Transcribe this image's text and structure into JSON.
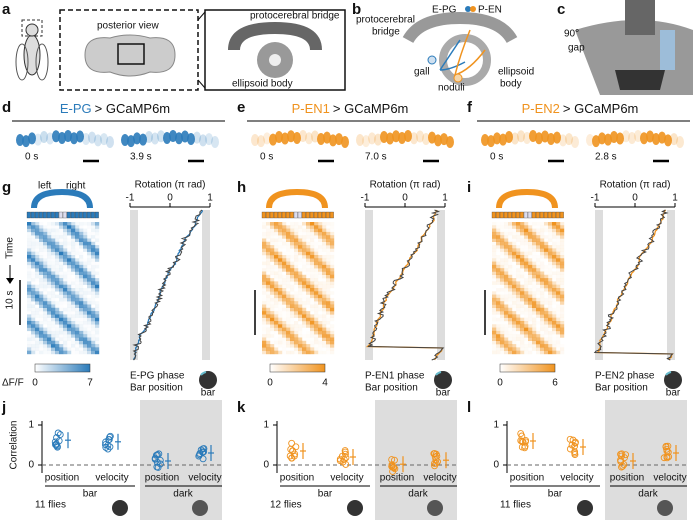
{
  "panel_a": {
    "letter": "a",
    "posterior_view": "posterior view",
    "pb": "protocerebral bridge",
    "eb": "ellipsoid body"
  },
  "panel_b": {
    "letter": "b",
    "pb": [
      "protocerebral",
      "bridge"
    ],
    "epg": "E-PG",
    "pen": "P-EN",
    "gall": "gall",
    "noduli": "noduli",
    "eb": [
      "ellipsoid",
      "body"
    ]
  },
  "panel_c": {
    "letter": "c",
    "angle": "90°",
    "gap": "gap"
  },
  "imaging": [
    {
      "letter": "d",
      "line": "E-PG",
      "suffix": "> GCaMP6m",
      "color": "#2b7bba",
      "times": [
        "0 s",
        "3.9 s"
      ]
    },
    {
      "letter": "e",
      "line": "P-EN1",
      "suffix": "> GCaMP6m",
      "color": "#f0931f",
      "times": [
        "0 s",
        "7.0 s"
      ]
    },
    {
      "letter": "f",
      "line": "P-EN2",
      "suffix": "> GCaMP6m",
      "color": "#f0931f",
      "times": [
        "0 s",
        "2.8 s"
      ]
    }
  ],
  "schematic": {
    "left": "left",
    "right": "right",
    "time": "Time",
    "scale": "10 s",
    "cbar_title": "ΔF/F"
  },
  "traces": [
    {
      "letter": "g",
      "axis_title": "Rotation (π rad)",
      "ticks": [
        -1,
        0,
        1
      ],
      "cbar_ticks": [
        0,
        7
      ],
      "phase": "E-PG phase",
      "bar_position": "Bar position",
      "icon": "bar",
      "color": "#2b7bba"
    },
    {
      "letter": "h",
      "axis_title": "Rotation (π rad)",
      "ticks": [
        -1,
        0,
        1
      ],
      "cbar_ticks": [
        0,
        4
      ],
      "phase": "P-EN1 phase",
      "bar_position": "Bar position",
      "icon": "bar",
      "color": "#f0931f"
    },
    {
      "letter": "i",
      "axis_title": "Rotation (π rad)",
      "ticks": [
        -1,
        0,
        1
      ],
      "cbar_ticks": [
        0,
        6
      ],
      "phase": "P-EN2 phase",
      "bar_position": "Bar position",
      "icon": "bar",
      "color": "#f0931f"
    }
  ],
  "correlation": {
    "y_title": "Correlation",
    "yticks": [
      0,
      1
    ],
    "measures": [
      "position",
      "velocity"
    ],
    "conditions": [
      "bar",
      "dark"
    ],
    "panels": [
      {
        "letter": "j",
        "flies": "11 flies",
        "color": "#2b7bba"
      },
      {
        "letter": "k",
        "flies": "12 flies",
        "color": "#f0931f"
      },
      {
        "letter": "l",
        "flies": "11 flies",
        "color": "#f0931f"
      }
    ]
  }
}
